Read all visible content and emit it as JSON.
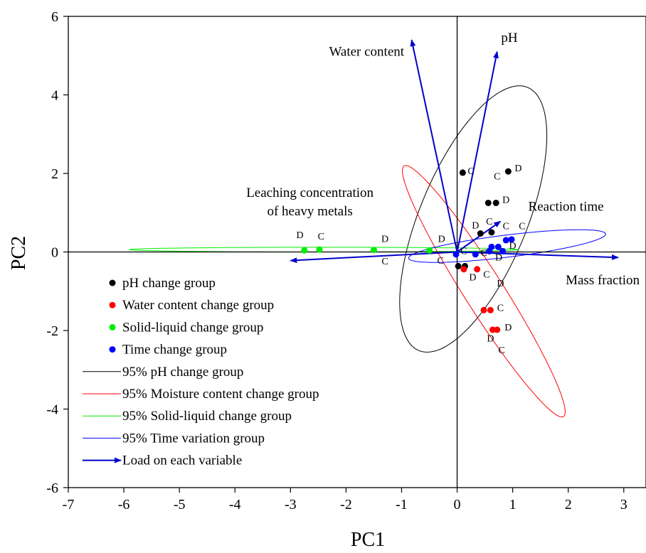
{
  "chart_data": {
    "type": "scatter",
    "xlabel": "PC1",
    "ylabel": "PC2",
    "xlim": [
      -7,
      3.4
    ],
    "ylim": [
      -6,
      6
    ],
    "x_ticks": [
      -7,
      -6,
      -5,
      -4,
      -3,
      -2,
      -1,
      0,
      1,
      2,
      3
    ],
    "y_ticks": [
      -6,
      -4,
      -2,
      0,
      2,
      4,
      6
    ],
    "grid": false,
    "legend_position": "left",
    "colors": {
      "ph": "#000000",
      "water": "#ff0000",
      "solid": "#00ee00",
      "time": "#0000ff",
      "loading": "#0000cc"
    },
    "series": [
      {
        "name": "pH change group",
        "color": "#000000",
        "points": [
          [
            0.1,
            2.02
          ],
          [
            0.92,
            2.05
          ],
          [
            0.56,
            1.25
          ],
          [
            0.7,
            1.25
          ],
          [
            0.42,
            0.47
          ],
          [
            0.62,
            0.5
          ],
          [
            0.02,
            -0.36
          ],
          [
            0.14,
            -0.36
          ]
        ]
      },
      {
        "name": "Water content change group",
        "color": "#ff0000",
        "points": [
          [
            0.12,
            -0.44
          ],
          [
            0.36,
            -0.44
          ],
          [
            0.48,
            -1.48
          ],
          [
            0.6,
            -1.48
          ],
          [
            0.64,
            -1.98
          ],
          [
            0.72,
            -1.98
          ]
        ]
      },
      {
        "name": "Solid-liquid change group",
        "color": "#00ee00",
        "points": [
          [
            -2.75,
            0.04
          ],
          [
            -2.48,
            0.06
          ],
          [
            -1.5,
            0.05
          ],
          [
            -0.5,
            0.04
          ]
        ]
      },
      {
        "name": "Time change group",
        "color": "#0000ff",
        "points": [
          [
            -0.02,
            -0.06
          ],
          [
            0.33,
            -0.06
          ],
          [
            0.62,
            0.13
          ],
          [
            0.74,
            0.13
          ],
          [
            0.88,
            0.3
          ],
          [
            0.98,
            0.32
          ],
          [
            0.58,
            0.02
          ],
          [
            0.82,
            0.02
          ]
        ]
      }
    ],
    "ellipses": [
      {
        "name": "95% pH change group",
        "color": "#000000",
        "cx": 0.29,
        "cy": 0.84,
        "a": 3.5,
        "b": 1.0,
        "angle_deg": 75
      },
      {
        "name": "95% Moisture content change group",
        "color": "#ff0000",
        "cx": 0.48,
        "cy": -1.0,
        "a": 3.5,
        "b": 0.38,
        "angle_deg": -66
      },
      {
        "name": "95% Solid-liquid change group",
        "color": "#00ee00",
        "cx": -2.4,
        "cy": 0.06,
        "a": 3.5,
        "b": 0.06,
        "angle_deg": 0
      },
      {
        "name": "95% Time variation group",
        "color": "#0000ff",
        "cx": 0.9,
        "cy": 0.15,
        "a": 1.8,
        "b": 0.28,
        "angle_deg": 10
      }
    ],
    "loadings": {
      "name": "Load on each variable",
      "color": "#0000cc",
      "vectors": [
        {
          "label": "Water content",
          "x": -0.82,
          "y": 5.4
        },
        {
          "label": "pH",
          "x": 0.72,
          "y": 5.1
        },
        {
          "label": "Reaction time",
          "x": 0.78,
          "y": 0.78
        },
        {
          "label": "Mass fraction",
          "x": 2.9,
          "y": -0.14
        },
        {
          "label": "Leaching concentration of heavy metals",
          "x": -3.0,
          "y": -0.22
        }
      ]
    },
    "variable_labels": [
      {
        "lines": [
          "Water content"
        ],
        "x": -1.63,
        "y": 5.0,
        "anchor": "middle"
      },
      {
        "lines": [
          "pH"
        ],
        "x": 0.94,
        "y": 5.35,
        "anchor": "middle"
      },
      {
        "lines": [
          "Reaction time"
        ],
        "x": 1.96,
        "y": 1.05,
        "anchor": "middle"
      },
      {
        "lines": [
          "Mass fraction"
        ],
        "x": 2.62,
        "y": -0.82,
        "anchor": "middle"
      },
      {
        "lines": [
          "Leaching concentration",
          "of heavy metals"
        ],
        "x": -2.65,
        "y": 1.4,
        "anchor": "middle"
      }
    ],
    "point_annotations": [
      {
        "text": "C",
        "x": 0.25,
        "y": 1.98
      },
      {
        "text": "C",
        "x": 0.72,
        "y": 1.85
      },
      {
        "text": "D",
        "x": 1.1,
        "y": 2.05
      },
      {
        "text": "D",
        "x": 0.88,
        "y": 1.25
      },
      {
        "text": "C",
        "x": 0.58,
        "y": 0.7
      },
      {
        "text": "D",
        "x": 0.33,
        "y": 0.6
      },
      {
        "text": "C",
        "x": 0.88,
        "y": 0.58
      },
      {
        "text": "C",
        "x": 1.17,
        "y": 0.58
      },
      {
        "text": "D",
        "x": -2.83,
        "y": 0.35
      },
      {
        "text": "C",
        "x": -2.45,
        "y": 0.32
      },
      {
        "text": "D",
        "x": -1.3,
        "y": 0.25
      },
      {
        "text": "D",
        "x": -0.28,
        "y": 0.25
      },
      {
        "text": "C",
        "x": -1.3,
        "y": -0.32
      },
      {
        "text": "C",
        "x": -0.3,
        "y": -0.3
      },
      {
        "text": "C",
        "x": 0.12,
        "y": -0.05
      },
      {
        "text": "C",
        "x": 0.48,
        "y": -0.1
      },
      {
        "text": "D",
        "x": 0.75,
        "y": -0.22
      },
      {
        "text": "D",
        "x": 1.0,
        "y": 0.08
      },
      {
        "text": "D",
        "x": 0.28,
        "y": -0.72
      },
      {
        "text": "C",
        "x": 0.53,
        "y": -0.65
      },
      {
        "text": "D",
        "x": 0.78,
        "y": -0.88
      },
      {
        "text": "C",
        "x": 0.78,
        "y": -1.5
      },
      {
        "text": "D",
        "x": 0.92,
        "y": -2.0
      },
      {
        "text": "D",
        "x": 0.6,
        "y": -2.28
      },
      {
        "text": "C",
        "x": 0.8,
        "y": -2.58
      }
    ],
    "legend": [
      {
        "kind": "marker",
        "label": "pH change group",
        "color": "#000000"
      },
      {
        "kind": "marker",
        "label": "Water content change group",
        "color": "#ff0000"
      },
      {
        "kind": "marker",
        "label": "Solid-liquid change group",
        "color": "#00ee00"
      },
      {
        "kind": "marker",
        "label": "Time change group",
        "color": "#0000ff"
      },
      {
        "kind": "line",
        "label": "95% pH change group",
        "color": "#000000"
      },
      {
        "kind": "line",
        "label": "95% Moisture content change group",
        "color": "#ff0000"
      },
      {
        "kind": "line",
        "label": "95% Solid-liquid change group",
        "color": "#00ee00"
      },
      {
        "kind": "line",
        "label": "95% Time variation group",
        "color": "#0000ff"
      },
      {
        "kind": "arrow",
        "label": "Load on each variable",
        "color": "#0000cc"
      }
    ]
  }
}
